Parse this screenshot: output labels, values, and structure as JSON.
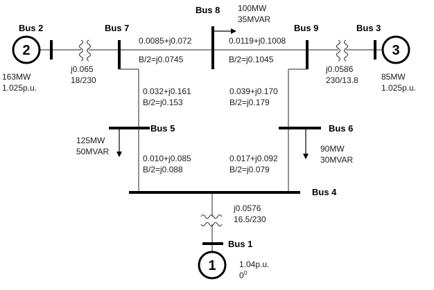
{
  "buses": {
    "bus1": "Bus 1",
    "bus2": "Bus 2",
    "bus3": "Bus 3",
    "bus4": "Bus 4",
    "bus5": "Bus 5",
    "bus6": "Bus 6",
    "bus7": "Bus 7",
    "bus8": "Bus 8",
    "bus9": "Bus 9"
  },
  "generators": {
    "g1": {
      "number": "1",
      "voltage": "1.04p.u.",
      "angle_value": "0",
      "angle_unit": "0"
    },
    "g2": {
      "number": "2",
      "power": "163MW",
      "voltage": "1.025p.u."
    },
    "g3": {
      "number": "3",
      "power": "85MW",
      "voltage": "1.025p.u."
    }
  },
  "transformers": {
    "t1": {
      "impedance": "j0.0576",
      "ratio": "16.5/230"
    },
    "t2": {
      "impedance": "j0.065",
      "ratio": "18/230"
    },
    "t3": {
      "impedance": "j0.0586",
      "ratio": "230/13.8"
    }
  },
  "lines": {
    "l78": {
      "impedance": "0.0085+j0.072",
      "b_half": "B/2=j0.0745"
    },
    "l89": {
      "impedance": "0.0119+j0.1008",
      "b_half": "B/2=j0.1045"
    },
    "l75": {
      "impedance": "0.032+j0.161",
      "b_half": "B/2=j0.153"
    },
    "l96": {
      "impedance": "0.039+j0.170",
      "b_half": "B/2=j0.179"
    },
    "l54": {
      "impedance": "0.010+j0.085",
      "b_half": "B/2=j0.088"
    },
    "l64": {
      "impedance": "0.017+j0.092",
      "b_half": "B/2=j0.079"
    }
  },
  "loads": {
    "load5": {
      "mw": "125MW",
      "mvar": "50MVAR"
    },
    "load6": {
      "mw": "90MW",
      "mvar": "30MVAR"
    },
    "load8": {
      "mw": "100MW",
      "mvar": "35MVAR"
    }
  }
}
